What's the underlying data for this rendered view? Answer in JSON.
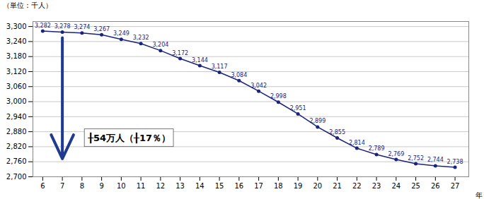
{
  "chart_data": {
    "type": "line",
    "x": [
      6,
      7,
      8,
      9,
      10,
      11,
      12,
      13,
      14,
      15,
      16,
      17,
      18,
      19,
      20,
      21,
      22,
      23,
      24,
      25,
      26,
      27
    ],
    "values": [
      3282,
      3278,
      3274,
      3267,
      3249,
      3232,
      3204,
      3172,
      3144,
      3117,
      3084,
      3042,
      2998,
      2951,
      2899,
      2855,
      2814,
      2789,
      2769,
      2752,
      2744,
      2738
    ],
    "value_labels": [
      "3,282",
      "3,278",
      "3,274",
      "3,267",
      "3,249",
      "3,232",
      "3,204",
      "3,172",
      "3,144",
      "3,117",
      "3,084",
      "3,042",
      "2,998",
      "2,951",
      "2,899",
      "2,855",
      "2,814",
      "2,789",
      "2,769",
      "2,752",
      "2,744",
      "2,738"
    ],
    "color": "#1a237e",
    "marker": "circle",
    "data_labels": true,
    "xlabel": "年",
    "ylabel": "（単位：千人）",
    "xlim": [
      5.5,
      27.7
    ],
    "xticks": [
      6,
      7,
      8,
      9,
      10,
      11,
      12,
      13,
      14,
      15,
      16,
      17,
      18,
      19,
      20,
      21,
      22,
      23,
      24,
      25,
      26,
      27
    ],
    "ylim": [
      2700,
      3320
    ],
    "yticks": [
      {
        "value": 2700,
        "label": "2,700"
      },
      {
        "value": 2760,
        "label": "2,760"
      },
      {
        "value": 2820,
        "label": "2,820"
      },
      {
        "value": 2880,
        "label": "2,880"
      },
      {
        "value": 2940,
        "label": "2,940"
      },
      {
        "value": 3000,
        "label": "3,000"
      },
      {
        "value": 3060,
        "label": "3,060"
      },
      {
        "value": 3120,
        "label": "3,120"
      },
      {
        "value": 3180,
        "label": "3,180"
      },
      {
        "value": 3240,
        "label": "3,240"
      },
      {
        "value": 3300,
        "label": "3,300"
      }
    ],
    "grid": "y",
    "annotations": [
      {
        "type": "arrow",
        "x": 7.0,
        "y_start": 3255,
        "y_end": 2772,
        "color": "#1f3a8f"
      },
      {
        "type": "text",
        "text": "╂54万人（╂17％）",
        "x": 8.3,
        "y": 2855
      }
    ]
  }
}
